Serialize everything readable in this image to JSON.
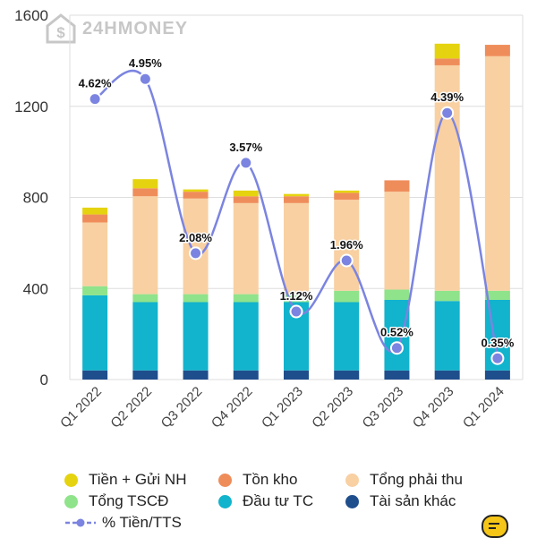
{
  "watermark": {
    "text": "24HMONEY",
    "icon": "dollar-house-logo-icon"
  },
  "chart_data": {
    "type": "bar",
    "stacked": true,
    "categories": [
      "Q1 2022",
      "Q2 2022",
      "Q3 2022",
      "Q4 2022",
      "Q1 2023",
      "Q2 2023",
      "Q3 2023",
      "Q4 2023",
      "Q1 2024"
    ],
    "ylim": [
      0,
      1600
    ],
    "yticks": [
      "0",
      "400",
      "800",
      "1200",
      "1600"
    ],
    "grid": true,
    "legend_position": "bottom",
    "series": [
      {
        "name": "Tài sản khác",
        "color": "#1f4e8c",
        "values": [
          40,
          40,
          40,
          40,
          40,
          40,
          40,
          40,
          40
        ]
      },
      {
        "name": "Đầu tư TC",
        "color": "#12b3cc",
        "values": [
          330,
          300,
          300,
          300,
          300,
          300,
          310,
          305,
          310
        ]
      },
      {
        "name": "Tổng TSCĐ",
        "color": "#8fe38a",
        "values": [
          40,
          35,
          35,
          35,
          35,
          50,
          45,
          45,
          40
        ]
      },
      {
        "name": "Tổng phải thu",
        "color": "#f8d0a2",
        "values": [
          280,
          430,
          420,
          400,
          400,
          400,
          430,
          990,
          1030
        ]
      },
      {
        "name": "Tồn kho",
        "color": "#ef8d5a",
        "values": [
          35,
          35,
          30,
          30,
          30,
          30,
          50,
          30,
          50
        ]
      },
      {
        "name": "Tiền + Gửi NH",
        "color": "#e5d30f",
        "values": [
          30,
          40,
          10,
          25,
          10,
          10,
          0,
          65,
          0
        ]
      }
    ],
    "line_series": {
      "name": "% Tiền/TTS",
      "color": "#7b84e0",
      "values": [
        4.62,
        4.95,
        2.08,
        3.57,
        1.12,
        1.96,
        0.52,
        4.39,
        0.35
      ],
      "labels": [
        "4.62%",
        "4.95%",
        "2.08%",
        "3.57%",
        "1.12%",
        "1.96%",
        "0.52%",
        "4.39%",
        "0.35%"
      ],
      "ylim": [
        0,
        6
      ]
    },
    "legend_rows": [
      [
        {
          "label": "Tiền + Gửi NH",
          "color": "#e5d30f"
        },
        {
          "label": "Tồn kho",
          "color": "#ef8d5a"
        },
        {
          "label": "Tổng phải thu",
          "color": "#f8d0a2"
        }
      ],
      [
        {
          "label": "Tổng TSCĐ",
          "color": "#8fe38a"
        },
        {
          "label": "Đầu tư TC",
          "color": "#12b3cc"
        },
        {
          "label": "Tài sản khác",
          "color": "#1f4e8c"
        }
      ]
    ],
    "line_legend_label": "% Tiền/TTS"
  }
}
